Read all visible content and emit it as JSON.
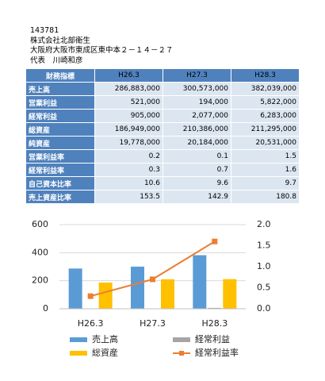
{
  "header": {
    "lines": [
      "143781",
      "株式会社北部衛生",
      "大阪府大阪市東成区東中本２－１４－２７",
      "代表　川崎和彦"
    ]
  },
  "table": {
    "header": [
      "財務指標",
      "H26.3",
      "H27.3",
      "H28.3"
    ],
    "rows": [
      [
        "売上高",
        "286,883,000",
        "300,573,000",
        "382,039,000"
      ],
      [
        "営業利益",
        "521,000",
        "194,000",
        "5,822,000"
      ],
      [
        "経常利益",
        "905,000",
        "2,077,000",
        "6,283,000"
      ],
      [
        "総資産",
        "186,949,000",
        "210,386,000",
        "211,295,000"
      ],
      [
        "純資産",
        "19,778,000",
        "20,184,000",
        "20,531,000"
      ],
      [
        "営業利益率",
        "0.2",
        "0.1",
        "1.5"
      ],
      [
        "経常利益率",
        "0.3",
        "0.7",
        "1.6"
      ],
      [
        "自己資本比率",
        "10.6",
        "9.6",
        "9.7"
      ],
      [
        "売上資産比率",
        "153.5",
        "142.9",
        "180.8"
      ]
    ]
  },
  "chart_data": {
    "type": "bar",
    "categories": [
      "H26.3",
      "H27.3",
      "H28.3"
    ],
    "series": [
      {
        "name": "売上高",
        "color": "#5b9bd5",
        "values": [
          286.883,
          300.573,
          382.039
        ]
      },
      {
        "name": "経常利益",
        "color": "#a5a5a5",
        "values": [
          0.905,
          2.077,
          6.283
        ]
      },
      {
        "name": "総資産",
        "color": "#ffc000",
        "values": [
          186.949,
          210.386,
          211.295
        ]
      },
      {
        "name": "経常利益率",
        "color": "#ed7d31",
        "type": "line",
        "axis": "y2",
        "values": [
          0.3,
          0.7,
          1.6
        ]
      }
    ],
    "ylim": [
      0,
      600
    ],
    "yticks": [
      0,
      200,
      400,
      600
    ],
    "y2lim": [
      0,
      2
    ],
    "y2ticks": [
      {
        "value": 0,
        "label": "0.0"
      },
      0.5,
      {
        "value": 1,
        "label": "1.0"
      },
      1.5,
      {
        "value": 2,
        "label": "2.0"
      }
    ],
    "grid": true
  }
}
